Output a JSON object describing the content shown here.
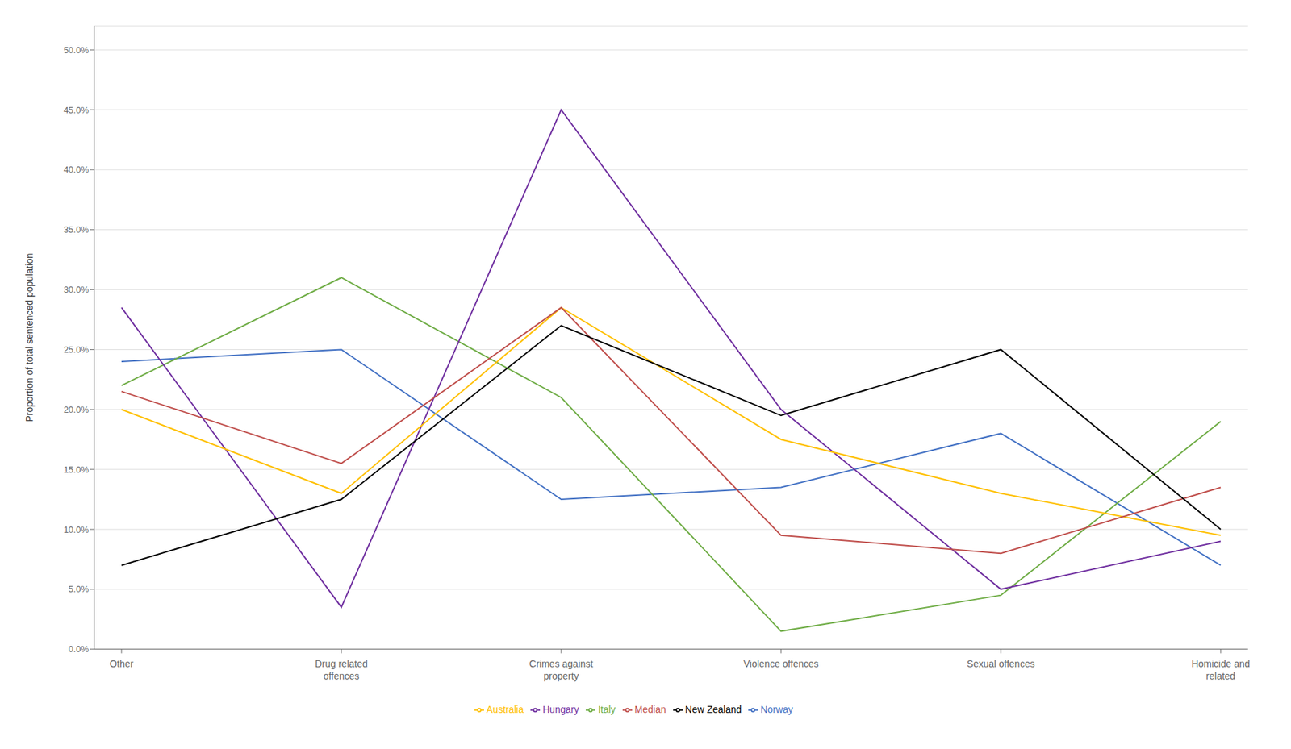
{
  "chart_data": {
    "type": "line",
    "categories": [
      "Other",
      "Drug related\noffences",
      "Crimes against\nproperty",
      "Violence offences",
      "Sexual offences",
      "Homicide and\nrelated"
    ],
    "series": [
      {
        "name": "Norway",
        "color": "#4472C4",
        "values": [
          0.24,
          0.25,
          0.125,
          0.135,
          0.18,
          0.07
        ]
      },
      {
        "name": "Italy",
        "color": "#70AD47",
        "values": [
          0.22,
          0.31,
          0.21,
          0.015,
          0.045,
          0.19
        ]
      },
      {
        "name": "Hungary",
        "color": "#7030A0",
        "values": [
          0.285,
          0.035,
          0.45,
          0.2,
          0.05,
          0.09
        ]
      },
      {
        "name": "Australia",
        "color": "#FFC000",
        "values": [
          0.2,
          0.13,
          0.285,
          0.175,
          0.13,
          0.095
        ]
      },
      {
        "name": "Median",
        "color": "#C0504D",
        "values": [
          0.215,
          0.155,
          0.285,
          0.095,
          0.08,
          0.135
        ]
      },
      {
        "name": "New Zealand",
        "color": "#000000",
        "values": [
          0.07,
          0.125,
          0.27,
          0.195,
          0.25,
          0.1
        ]
      }
    ],
    "ylim": [
      0.0,
      0.52
    ],
    "yticks": [
      {
        "value": 0.0,
        "label": "0.0%"
      },
      {
        "value": 0.05,
        "label": "5.0%"
      },
      {
        "value": 0.1,
        "label": "10.0%"
      },
      {
        "value": 0.15,
        "label": "15.0%"
      },
      {
        "value": 0.2,
        "label": "20.0%"
      },
      {
        "value": 0.25,
        "label": "25.0%"
      },
      {
        "value": 0.3,
        "label": "30.0%"
      },
      {
        "value": 0.35,
        "label": "35.0%"
      },
      {
        "value": 0.4,
        "label": "40.0%"
      },
      {
        "value": 0.45,
        "label": "45.0%"
      },
      {
        "value": 0.5,
        "label": "50.0%"
      }
    ],
    "ylabel": "Proportion of total sentenced population",
    "grid": true,
    "legend": "bottom"
  }
}
